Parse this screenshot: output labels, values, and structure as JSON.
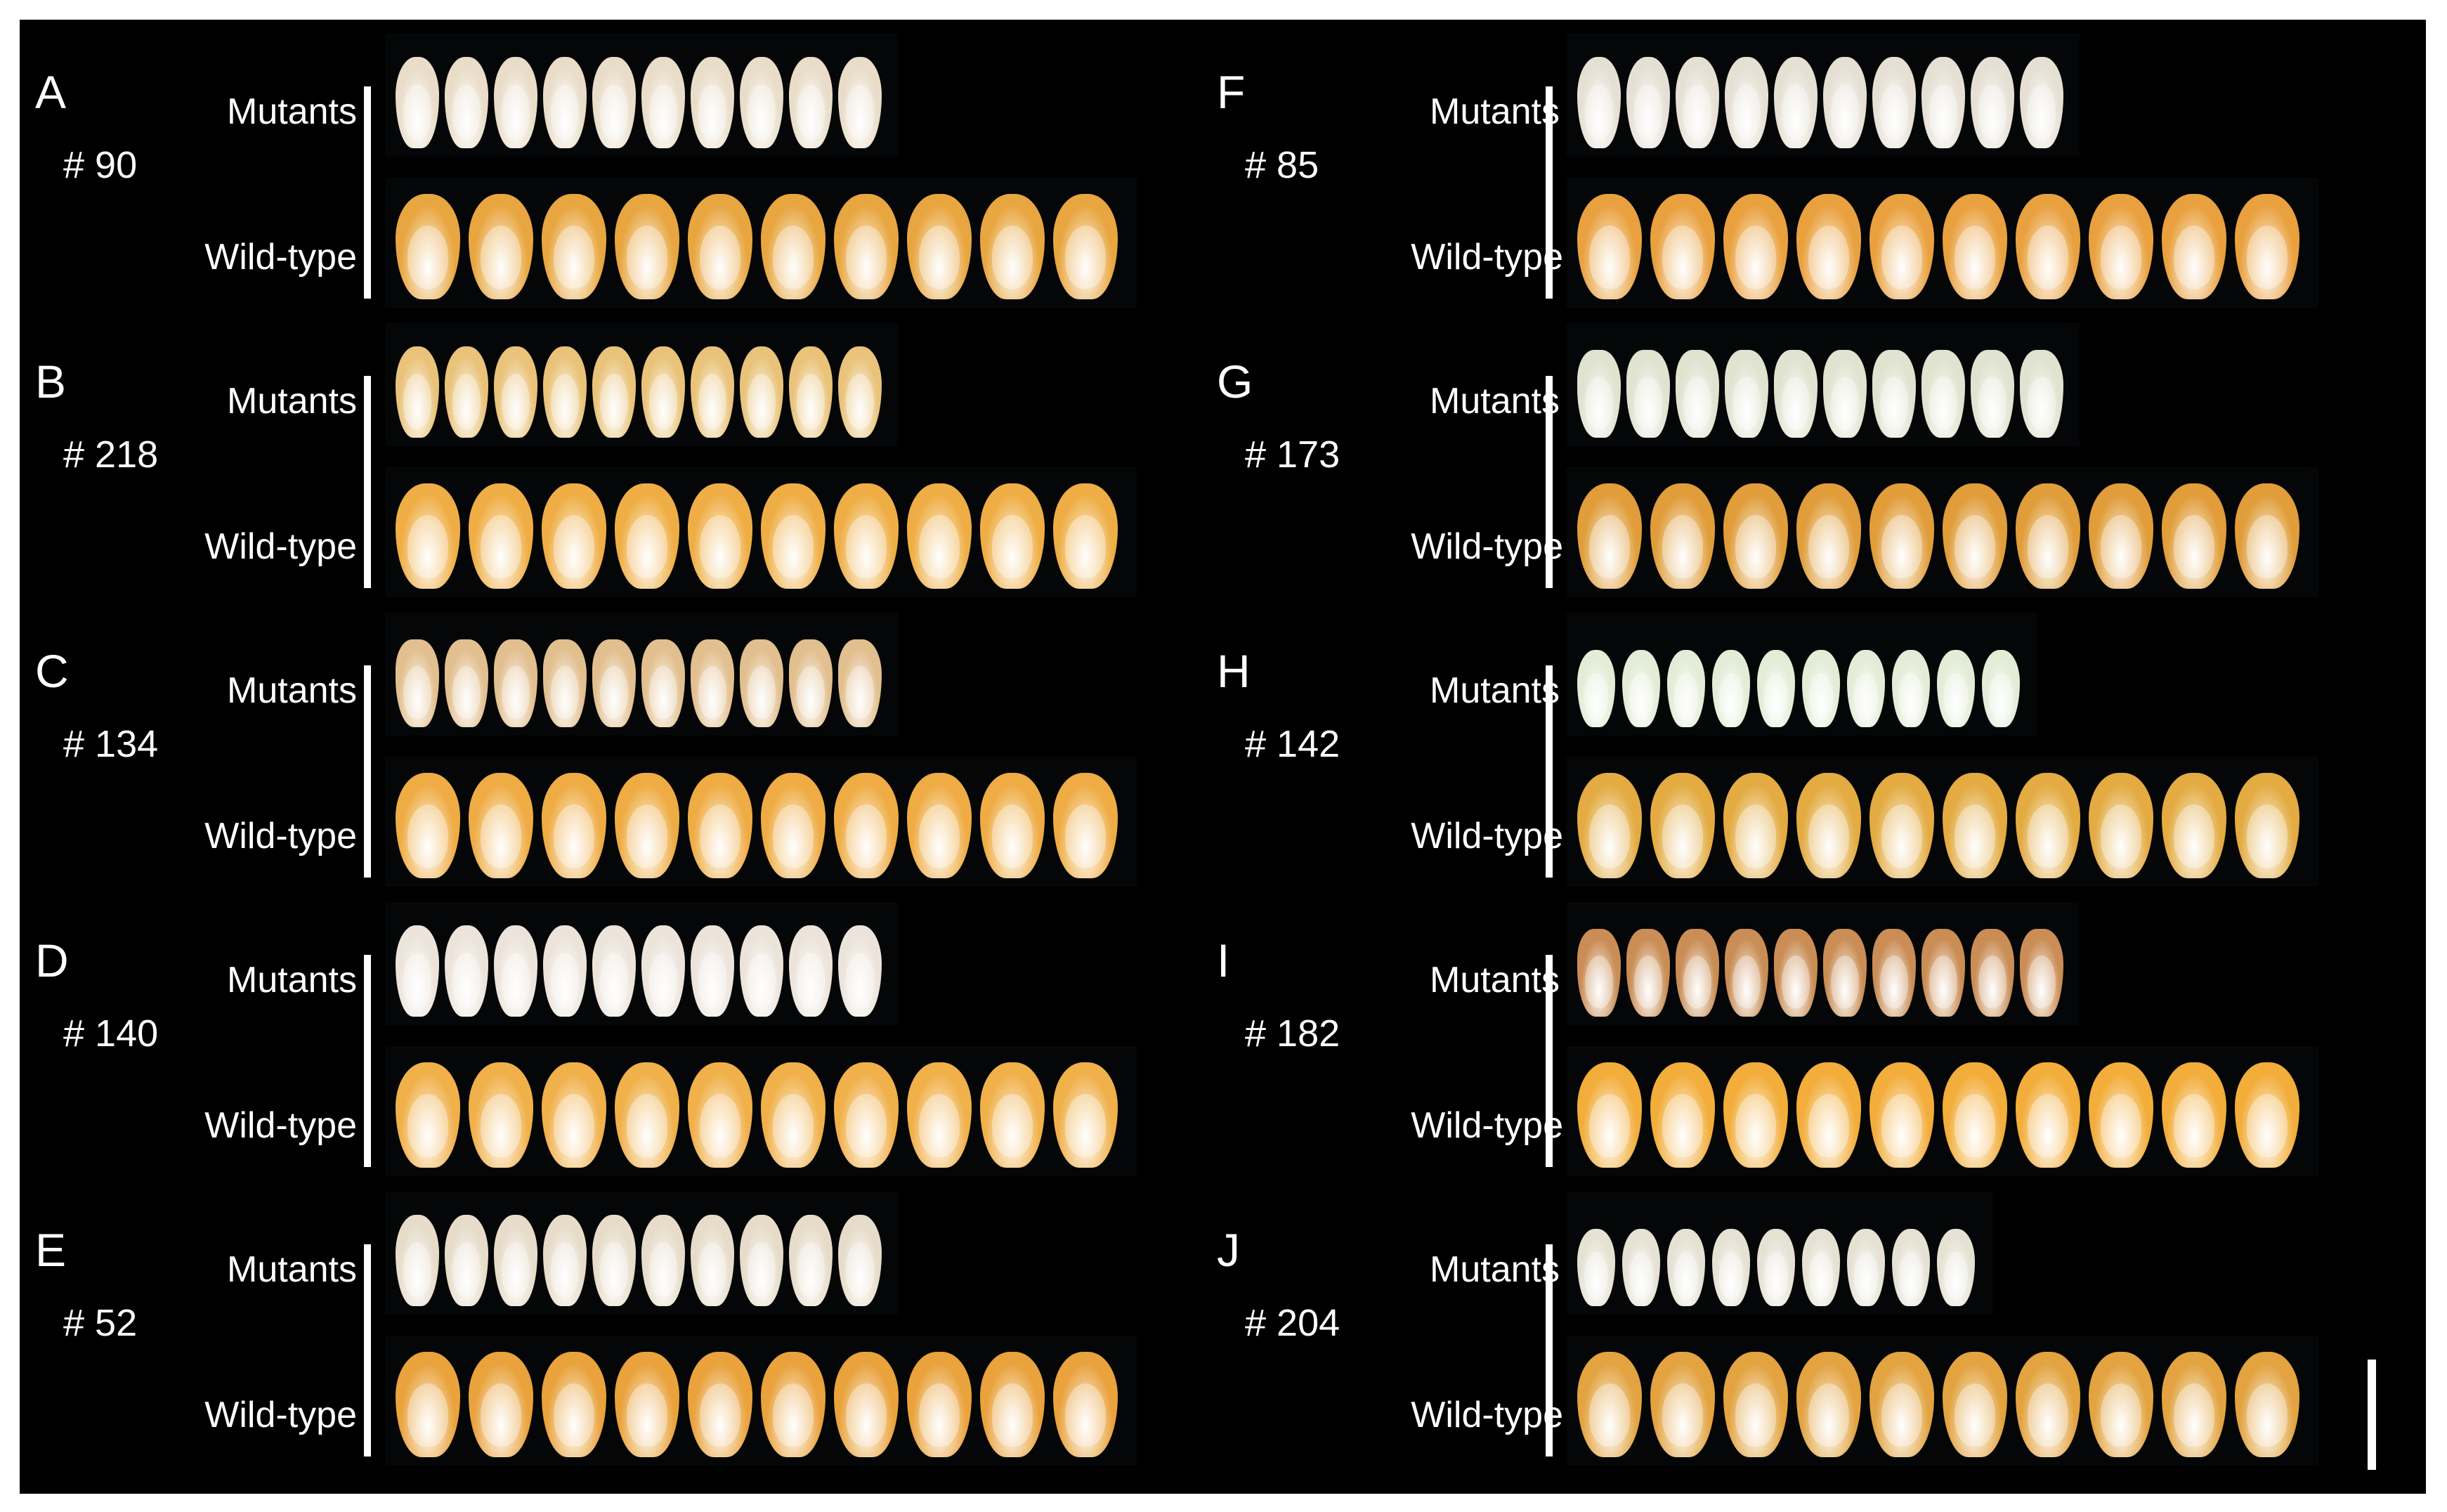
{
  "figure": {
    "row_labels": {
      "mutant": "Mutants",
      "wildtype": "Wild-type"
    },
    "panels": [
      {
        "letter": "A",
        "line": "# 90",
        "mutant_count": 10,
        "mutant_color": "#e9ddc9",
        "mutant_shape": "normal",
        "wt_color": "#e8a640"
      },
      {
        "letter": "B",
        "line": "# 218",
        "mutant_count": 10,
        "mutant_color": "#e9c37a",
        "mutant_shape": "normal",
        "wt_color": "#efae45"
      },
      {
        "letter": "C",
        "line": "# 134",
        "mutant_count": 10,
        "mutant_color": "#e2bf8f",
        "mutant_shape": "shrunken",
        "wt_color": "#efac44"
      },
      {
        "letter": "D",
        "line": "# 140",
        "mutant_count": 10,
        "mutant_color": "#ece4db",
        "mutant_shape": "normal",
        "wt_color": "#f0b04a"
      },
      {
        "letter": "E",
        "line": "# 52",
        "mutant_count": 10,
        "mutant_color": "#e6dcc9",
        "mutant_shape": "normal",
        "wt_color": "#e9a23c"
      },
      {
        "letter": "F",
        "line": "# 85",
        "mutant_count": 10,
        "mutant_color": "#e6e0d4",
        "mutant_shape": "normal",
        "wt_color": "#e9a13f"
      },
      {
        "letter": "G",
        "line": "# 173",
        "mutant_count": 10,
        "mutant_color": "#dfe3cf",
        "mutant_shape": "shrunken",
        "wt_color": "#e09d3a"
      },
      {
        "letter": "H",
        "line": "# 142",
        "mutant_count": 10,
        "mutant_color": "#e3ecd6",
        "mutant_shape": "small",
        "wt_color": "#e3ab42"
      },
      {
        "letter": "I",
        "line": "# 182",
        "mutant_count": 10,
        "mutant_color": "#c98d55",
        "mutant_shape": "shrunken",
        "wt_color": "#f2ad3a"
      },
      {
        "letter": "J",
        "line": "# 204",
        "mutant_count": 9,
        "mutant_color": "#e5e2d4",
        "mutant_shape": "small",
        "wt_color": "#e2a340"
      }
    ],
    "wildtype_count": 10,
    "scale_bar": true
  }
}
